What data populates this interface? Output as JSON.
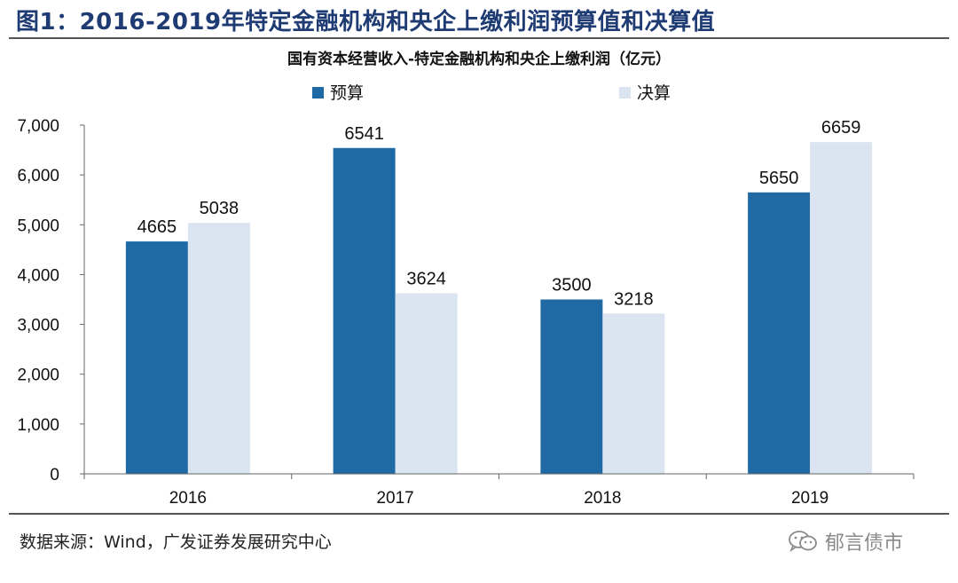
{
  "figure": {
    "title": "图1：2016-2019年特定金融机构和央企上缴利润预算值和决算值",
    "source": "数据来源：Wind，广发证券发展研究中心",
    "watermark": "郁言债市",
    "watermark_icon": "wechat-icon"
  },
  "chart_data": {
    "type": "bar",
    "title": "国有资本经营收入-特定金融机构和央企上缴利润（亿元）",
    "categories": [
      "2016",
      "2017",
      "2018",
      "2019"
    ],
    "series": [
      {
        "name": "预算",
        "values": [
          4665,
          6541,
          3500,
          5650
        ],
        "color": "#1f6aa5"
      },
      {
        "name": "决算",
        "values": [
          5038,
          3624,
          3218,
          6659
        ],
        "color": "#dbe4f1"
      }
    ],
    "y_ticks": [
      "0",
      "1,000",
      "2,000",
      "3,000",
      "4,000",
      "5,000",
      "6,000",
      "7,000"
    ],
    "ylim": [
      0,
      7000
    ],
    "xlabel": "",
    "ylabel": "",
    "grid": false,
    "legend_position": "top"
  }
}
